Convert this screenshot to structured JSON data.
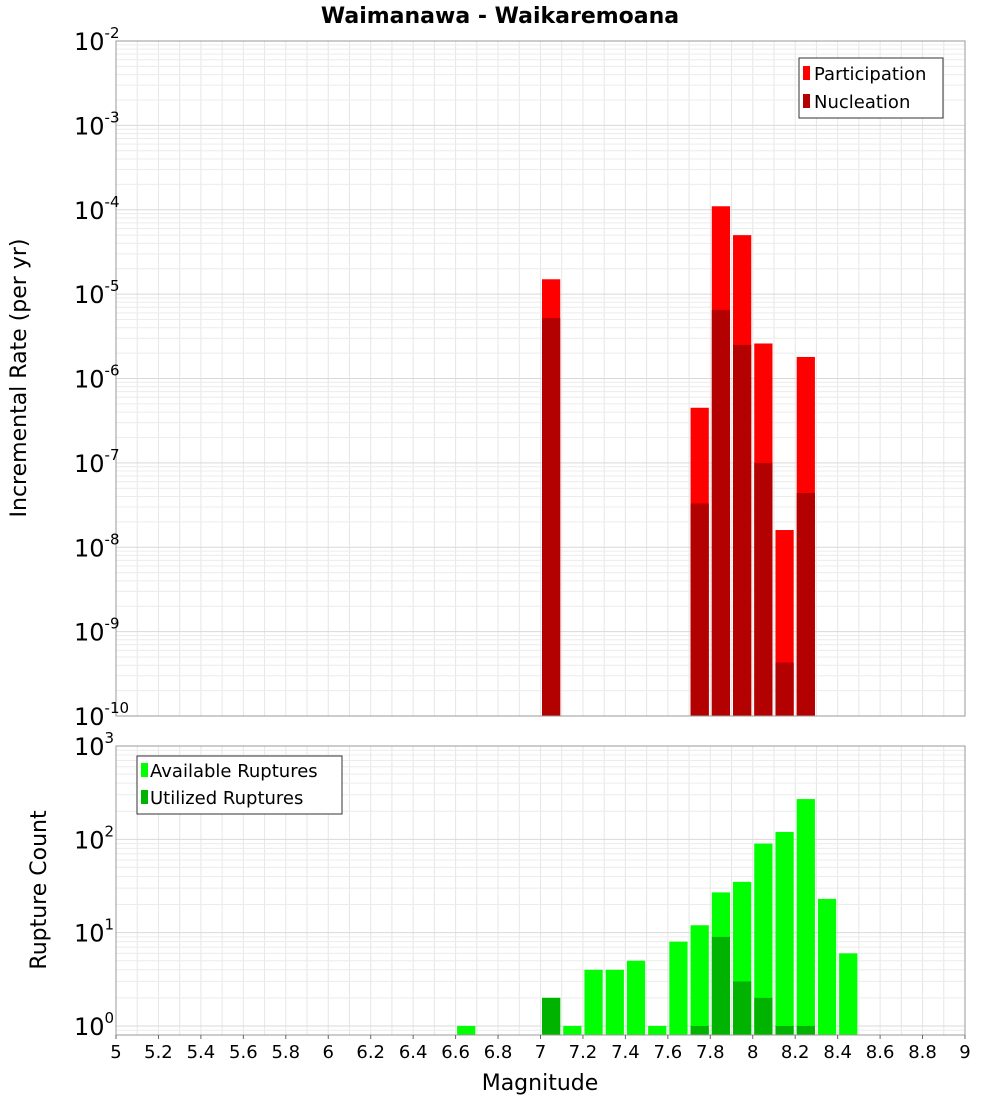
{
  "chart_data": [
    {
      "type": "bar",
      "title": "Waimanawa - Waikaremoana",
      "ylabel": "Incremental Rate (per yr)",
      "xlabel": "",
      "y_scale": "log",
      "ylim": [
        1e-10,
        0.01
      ],
      "xlim": [
        5,
        9
      ],
      "bar_width": 0.1,
      "grid": true,
      "legend_position": "top-right",
      "y_ticks": [
        {
          "base": "10",
          "exp": "-10",
          "value": 1e-10
        },
        {
          "base": "10",
          "exp": "-9",
          "value": 1e-09
        },
        {
          "base": "10",
          "exp": "-8",
          "value": 1e-08
        },
        {
          "base": "10",
          "exp": "-7",
          "value": 1e-07
        },
        {
          "base": "10",
          "exp": "-6",
          "value": 1e-06
        },
        {
          "base": "10",
          "exp": "-5",
          "value": 1e-05
        },
        {
          "base": "10",
          "exp": "-4",
          "value": 0.0001
        },
        {
          "base": "10",
          "exp": "-3",
          "value": 0.001
        },
        {
          "base": "10",
          "exp": "-2",
          "value": 0.01
        }
      ],
      "series": [
        {
          "name": "Participation",
          "color": "#ff0000",
          "x": [
            7.05,
            7.75,
            7.85,
            7.95,
            8.05,
            8.15,
            8.25
          ],
          "values": [
            1.5e-05,
            4.5e-07,
            0.00011,
            5e-05,
            2.6e-06,
            1.6e-08,
            1.8e-06
          ]
        },
        {
          "name": "Nucleation",
          "color": "#b30000",
          "x": [
            7.05,
            7.75,
            7.85,
            7.95,
            8.05,
            8.15,
            8.25
          ],
          "values": [
            5.2e-06,
            3.3e-08,
            6.5e-06,
            2.5e-06,
            1e-07,
            4.3e-10,
            4.4e-08
          ]
        }
      ]
    },
    {
      "type": "bar",
      "title": "",
      "ylabel": "Rupture Count",
      "xlabel": "Magnitude",
      "y_scale": "log",
      "ylim": [
        0.8,
        1000
      ],
      "xlim": [
        5,
        9
      ],
      "bar_width": 0.1,
      "grid": true,
      "legend_position": "top-left",
      "x_ticks": [
        "5",
        "5.2",
        "5.4",
        "5.6",
        "5.8",
        "6",
        "6.2",
        "6.4",
        "6.6",
        "6.8",
        "7",
        "7.2",
        "7.4",
        "7.6",
        "7.8",
        "8",
        "8.2",
        "8.4",
        "8.6",
        "8.8",
        "9"
      ],
      "y_ticks": [
        {
          "base": "10",
          "exp": "0",
          "value": 1
        },
        {
          "base": "10",
          "exp": "1",
          "value": 10
        },
        {
          "base": "10",
          "exp": "2",
          "value": 100
        },
        {
          "base": "10",
          "exp": "3",
          "value": 1000
        }
      ],
      "series": [
        {
          "name": "Available Ruptures",
          "color": "#00ff00",
          "x": [
            6.65,
            7.05,
            7.15,
            7.25,
            7.35,
            7.45,
            7.55,
            7.65,
            7.75,
            7.85,
            7.95,
            8.05,
            8.15,
            8.25,
            8.35,
            8.45
          ],
          "values": [
            1,
            2,
            1,
            4,
            4,
            5,
            1,
            8,
            12,
            27,
            35,
            90,
            120,
            270,
            23,
            6
          ]
        },
        {
          "name": "Utilized Ruptures",
          "color": "#00b300",
          "x": [
            7.05,
            7.75,
            7.85,
            7.95,
            8.05,
            8.15,
            8.25
          ],
          "values": [
            2,
            1,
            9,
            3,
            2,
            1,
            1
          ]
        }
      ]
    }
  ]
}
